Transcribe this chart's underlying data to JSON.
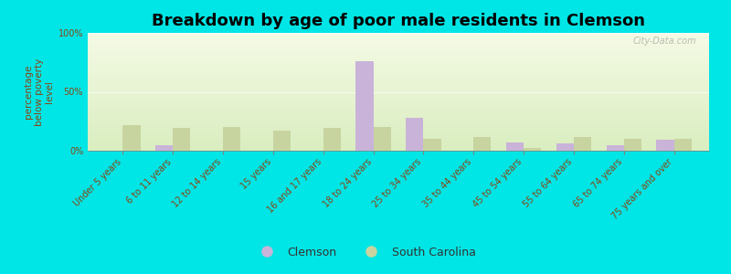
{
  "title": "Breakdown by age of poor male residents in Clemson",
  "ylabel": "percentage\nbelow poverty\nlevel",
  "categories": [
    "Under 5 years",
    "6 to 11 years",
    "12 to 14 years",
    "15 years",
    "16 and 17 years",
    "18 to 24 years",
    "25 to 34 years",
    "35 to 44 years",
    "45 to 54 years",
    "55 to 64 years",
    "65 to 74 years",
    "75 years and over"
  ],
  "clemson_values": [
    0,
    5,
    0,
    0,
    0,
    76,
    28,
    0,
    7,
    6,
    5,
    9
  ],
  "sc_values": [
    22,
    19,
    20,
    17,
    19,
    20,
    10,
    12,
    2,
    12,
    10,
    10
  ],
  "clemson_color": "#c9b3d9",
  "sc_color": "#c8d4a0",
  "background_color": "#00e5e5",
  "grad_top": "#f5fae5",
  "grad_bottom": "#daeec0",
  "ylim": [
    0,
    100
  ],
  "yticks": [
    0,
    50,
    100
  ],
  "ytick_labels": [
    "0%",
    "50%",
    "100%"
  ],
  "title_fontsize": 13,
  "axis_label_fontsize": 7.5,
  "tick_label_fontsize": 7,
  "legend_labels": [
    "Clemson",
    "South Carolina"
  ],
  "legend_fontsize": 9,
  "bar_width": 0.35,
  "watermark": "City-Data.com"
}
